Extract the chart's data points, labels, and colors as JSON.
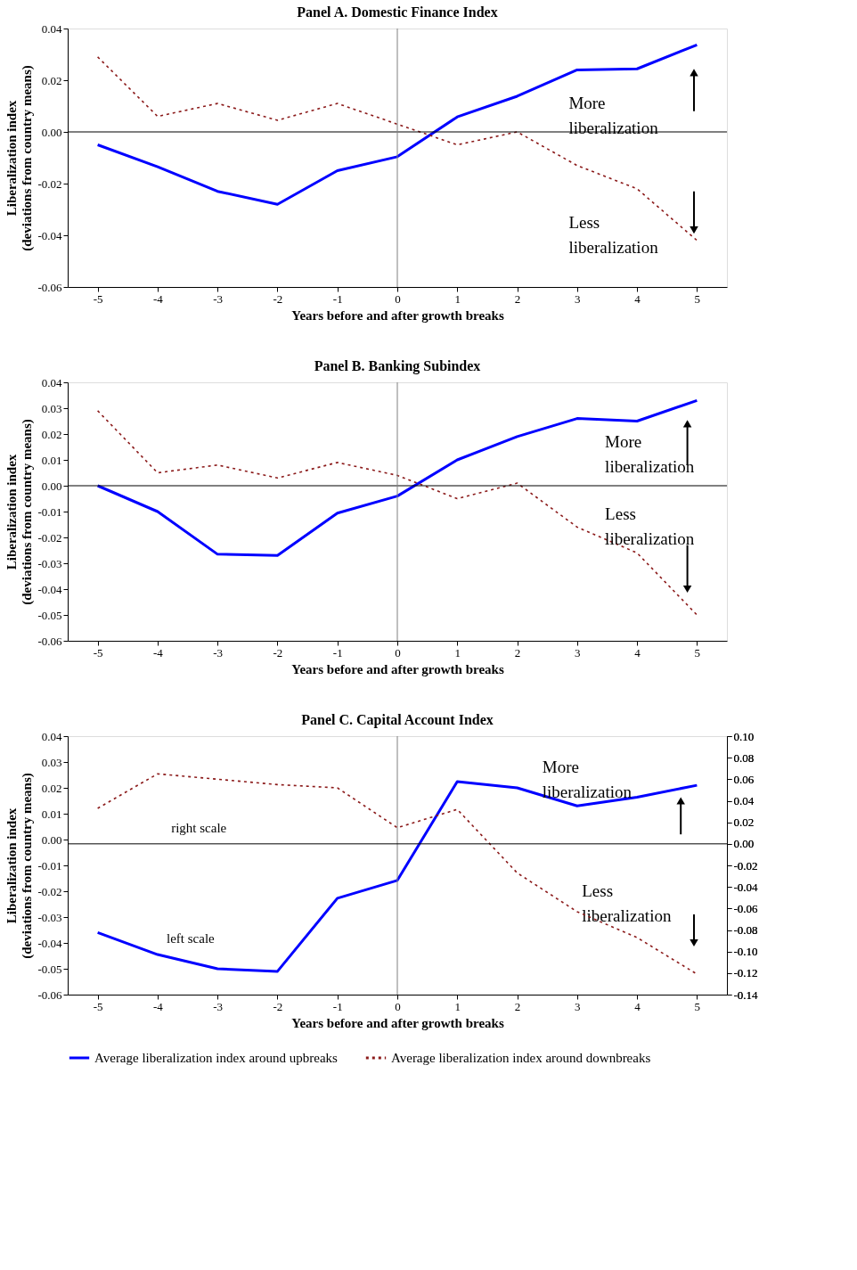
{
  "chart_data": [
    {
      "type": "line",
      "title": "Panel A. Domestic Finance Index",
      "xlabel": "Years before and after growth breaks",
      "ylabel": "Liberalization index\n(deviations from country means)",
      "x": [
        -5,
        -4,
        -3,
        -2,
        -1,
        0,
        1,
        2,
        3,
        4,
        5
      ],
      "xlim": [
        -5.5,
        5.5
      ],
      "xticks": [
        -5,
        -4,
        -3,
        -2,
        -1,
        0,
        1,
        2,
        3,
        4,
        5
      ],
      "ylim": [
        -0.06,
        0.04
      ],
      "yticks": [
        {
          "value": -0.06,
          "label": "-0.06"
        },
        {
          "value": -0.04,
          "label": "-0.04"
        },
        {
          "value": -0.02,
          "label": "-0.02"
        },
        {
          "value": 0,
          "label": "0.00"
        },
        {
          "value": 0.02,
          "label": "0.02"
        },
        {
          "value": 0.04,
          "label": "0.04"
        }
      ],
      "grid": false,
      "legend": false,
      "series": [
        {
          "color": "#0000ff",
          "line_style": "solid",
          "values": [
            -0.005,
            -0.0135,
            -0.023,
            -0.028,
            -0.015,
            -0.0096,
            0.0058,
            0.0138,
            0.024,
            0.0244,
            0.0337
          ]
        },
        {
          "color": "#8b1a1a",
          "line_style": "dotted",
          "values": [
            0.029,
            0.006,
            0.011,
            0.0045,
            0.011,
            0.003,
            -0.005,
            0.0,
            -0.013,
            -0.022,
            -0.042
          ]
        }
      ],
      "ref_lines": [
        {
          "axis": "y",
          "value": 0,
          "color": "#000000"
        },
        {
          "axis": "x",
          "value": 0,
          "color": "#808080"
        }
      ],
      "annotations": [
        "More liberalization",
        "Less liberalization"
      ]
    },
    {
      "type": "line",
      "title": "Panel B. Banking Subindex",
      "xlabel": "Years before and after growth breaks",
      "ylabel": "Liberalization index\n(deviations from country means)",
      "x": [
        -5,
        -4,
        -3,
        -2,
        -1,
        0,
        1,
        2,
        3,
        4,
        5
      ],
      "xlim": [
        -5.5,
        5.5
      ],
      "xticks": [
        -5,
        -4,
        -3,
        -2,
        -1,
        0,
        1,
        2,
        3,
        4,
        5
      ],
      "ylim": [
        -0.06,
        0.04
      ],
      "yticks": [
        {
          "value": -0.06,
          "label": "-0.06"
        },
        {
          "value": -0.05,
          "label": "-0.05"
        },
        {
          "value": -0.04,
          "label": "-0.04"
        },
        {
          "value": -0.03,
          "label": "-0.03"
        },
        {
          "value": -0.02,
          "label": "-0.02"
        },
        {
          "value": -0.01,
          "label": "-0.01"
        },
        {
          "value": 0,
          "label": "0.00"
        },
        {
          "value": 0.01,
          "label": "0.01"
        },
        {
          "value": 0.02,
          "label": "0.02"
        },
        {
          "value": 0.03,
          "label": "0.03"
        },
        {
          "value": 0.04,
          "label": "0.04"
        }
      ],
      "grid": false,
      "legend": false,
      "series": [
        {
          "color": "#0000ff",
          "line_style": "solid",
          "values": [
            0.0,
            -0.01,
            -0.0265,
            -0.027,
            -0.0106,
            -0.004,
            0.01,
            0.019,
            0.026,
            0.025,
            0.033
          ]
        },
        {
          "color": "#8b1a1a",
          "line_style": "dotted",
          "values": [
            0.029,
            0.005,
            0.008,
            0.003,
            0.009,
            0.004,
            -0.005,
            0.001,
            -0.016,
            -0.026,
            -0.05
          ]
        }
      ],
      "ref_lines": [
        {
          "axis": "y",
          "value": 0,
          "color": "#000000"
        },
        {
          "axis": "x",
          "value": 0,
          "color": "#808080"
        }
      ],
      "annotations": [
        "More liberalization",
        "Less liberalization"
      ]
    },
    {
      "type": "line",
      "title": "Panel C. Capital Account Index",
      "xlabel": "Years before and after growth breaks",
      "ylabel": "Liberalization index\n(deviations from country means)",
      "x": [
        -5,
        -4,
        -3,
        -2,
        -1,
        0,
        1,
        2,
        3,
        4,
        5
      ],
      "xlim": [
        -5.5,
        5.5
      ],
      "xticks": [
        -5,
        -4,
        -3,
        -2,
        -1,
        0,
        1,
        2,
        3,
        4,
        5
      ],
      "ylim": [
        -0.06,
        0.04
      ],
      "yticks": [
        {
          "value": -0.06,
          "label": "-0.06"
        },
        {
          "value": -0.05,
          "label": "-0.05"
        },
        {
          "value": -0.04,
          "label": "-0.04"
        },
        {
          "value": -0.03,
          "label": "-0.03"
        },
        {
          "value": -0.02,
          "label": "-0.02"
        },
        {
          "value": -0.01,
          "label": "-0.01"
        },
        {
          "value": 0,
          "label": "0.00"
        },
        {
          "value": 0.01,
          "label": "0.01"
        },
        {
          "value": 0.02,
          "label": "0.02"
        },
        {
          "value": 0.03,
          "label": "0.03"
        },
        {
          "value": 0.04,
          "label": "0.04"
        }
      ],
      "y2lim": [
        -0.14,
        0.1
      ],
      "y2ticks": [
        {
          "value": -0.14,
          "label": "-0.14"
        },
        {
          "value": -0.12,
          "label": "-0.12"
        },
        {
          "value": -0.1,
          "label": "-0.10"
        },
        {
          "value": -0.08,
          "label": "-0.08"
        },
        {
          "value": -0.06,
          "label": "-0.06"
        },
        {
          "value": -0.04,
          "label": "-0.04"
        },
        {
          "value": -0.02,
          "label": "-0.02"
        },
        {
          "value": 0,
          "label": "0.00"
        },
        {
          "value": 0.02,
          "label": "0.02"
        },
        {
          "value": 0.04,
          "label": "0.04"
        },
        {
          "value": 0.06,
          "label": "0.06"
        },
        {
          "value": 0.08,
          "label": "0.08"
        },
        {
          "value": 0.1,
          "label": "0.10"
        }
      ],
      "grid": false,
      "legend": "bottom",
      "series": [
        {
          "name": "Average liberalization index around upbreaks",
          "color": "#0000ff",
          "line_style": "solid",
          "values": [
            -0.036,
            -0.0445,
            -0.05,
            -0.051,
            -0.0227,
            -0.0158,
            0.0224,
            0.02,
            0.013,
            0.0164,
            0.021
          ]
        },
        {
          "name": "Average liberalization index around downbreaks",
          "color": "#8b1a1a",
          "line_style": "dotted",
          "axis": "y2",
          "values": [
            0.033,
            0.065,
            0.06,
            0.055,
            0.052,
            0.015,
            0.032,
            -0.027,
            -0.063,
            -0.087,
            -0.121
          ]
        }
      ],
      "ref_lines": [
        {
          "axis": "y2",
          "value": 0,
          "color": "#000000"
        },
        {
          "axis": "x",
          "value": 0,
          "color": "#808080"
        }
      ],
      "annotations": [
        "More liberalization",
        "Less liberalization",
        "right scale",
        "left scale"
      ]
    }
  ]
}
